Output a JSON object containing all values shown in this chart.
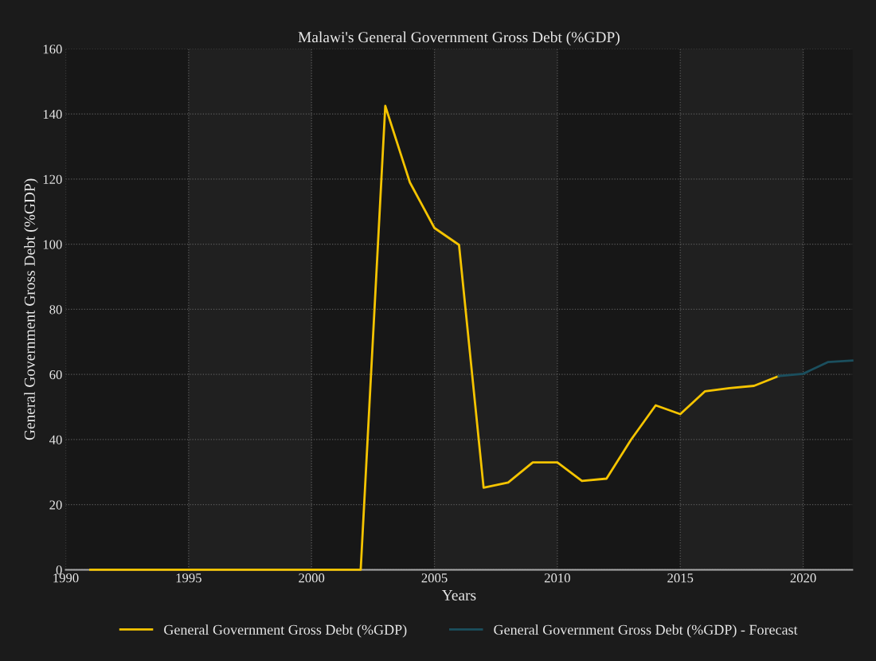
{
  "chart_data": {
    "type": "line",
    "title": "Malawi's General Government Gross Debt (%GDP)",
    "xlabel": "Years",
    "ylabel": "General Government Gross Debt (%GDP)",
    "series": [
      {
        "name": "General Government Gross Debt (%GDP)",
        "color": "#f5c400",
        "x": [
          1991,
          1992,
          1993,
          1994,
          1995,
          1996,
          1997,
          1998,
          1999,
          2000,
          2001,
          2002,
          2003,
          2004,
          2005,
          2006,
          2007,
          2008,
          2009,
          2010,
          2011,
          2012,
          2013,
          2014,
          2015,
          2016,
          2017,
          2018,
          2019
        ],
        "values": [
          0,
          0,
          0,
          0,
          0,
          0,
          0,
          0,
          0,
          0,
          0,
          0,
          142.5,
          119,
          105,
          99.8,
          25.2,
          26.8,
          33,
          33,
          27.3,
          28,
          40,
          50.5,
          47.8,
          54.8,
          55.8,
          56.5,
          59.5
        ]
      },
      {
        "name": "General Government Gross Debt (%GDP) - Forecast",
        "color": "#1b4f5e",
        "x": [
          2019,
          2020,
          2021,
          2022
        ],
        "values": [
          59.5,
          60.2,
          63.8,
          64.3
        ]
      }
    ],
    "bands": [
      {
        "axis": "x",
        "from": 1995,
        "to": 2000,
        "color": "#202020"
      },
      {
        "axis": "x",
        "from": 2005,
        "to": 2010,
        "color": "#202020"
      },
      {
        "axis": "x",
        "from": 2015,
        "to": 2020,
        "color": "#202020"
      }
    ],
    "xlim": [
      1990,
      2022
    ],
    "xticks": [
      1990,
      1995,
      2000,
      2005,
      2010,
      2015,
      2020
    ],
    "ylim": [
      0,
      160
    ],
    "yticks": [
      0,
      20,
      40,
      60,
      80,
      100,
      120,
      140,
      160
    ],
    "grid": true,
    "legend": "bottom",
    "line_style": "solid",
    "marker": "none"
  }
}
